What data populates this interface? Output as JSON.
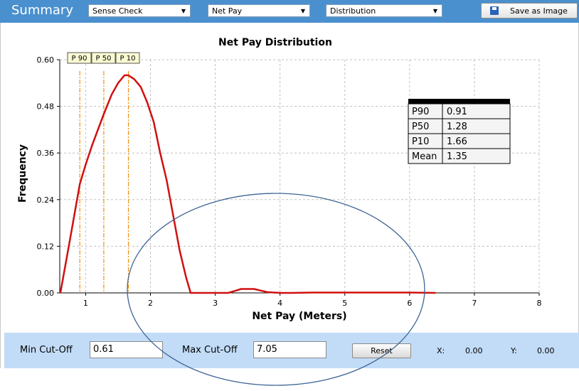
{
  "header": {
    "title": "Summary",
    "dropdown_1": "Sense Check",
    "dropdown_2": "Net Pay",
    "dropdown_3": "Distribution",
    "save_label": "Save as Image"
  },
  "colors": {
    "curve": "#d01010",
    "percentile_line": "#f09010",
    "grid": "#c0c0c0",
    "header_bg": "#4a90cf",
    "bottom_bg": "#c2dcf7",
    "ellipse": "#3e6494"
  },
  "chart_data": {
    "type": "line",
    "title": "Net Pay Distribution",
    "xlabel": "Net Pay (Meters)",
    "ylabel": "Frequency",
    "xlim": [
      0.6,
      8
    ],
    "ylim": [
      0,
      0.6
    ],
    "xticks": [
      "1",
      "2",
      "3",
      "4",
      "5",
      "6",
      "7",
      "8"
    ],
    "yticks": [
      "0.00",
      "0.12",
      "0.24",
      "0.36",
      "0.48",
      "0.60"
    ],
    "grid": true,
    "series": [
      {
        "x": [
          0.61,
          0.75,
          0.91,
          1.0,
          1.1,
          1.28,
          1.4,
          1.5,
          1.6,
          1.66,
          1.75,
          1.85,
          1.95,
          2.05,
          2.15,
          2.25,
          2.35,
          2.45,
          2.55,
          2.62,
          3.2,
          3.3,
          3.4,
          3.5,
          3.6,
          3.7,
          3.8,
          4.0,
          4.2,
          4.5,
          5.0,
          5.5,
          6.0,
          6.4
        ],
        "values": [
          0.0,
          0.13,
          0.28,
          0.33,
          0.38,
          0.46,
          0.51,
          0.54,
          0.56,
          0.56,
          0.55,
          0.53,
          0.49,
          0.44,
          0.36,
          0.29,
          0.2,
          0.11,
          0.04,
          0.0,
          0.0,
          0.005,
          0.01,
          0.01,
          0.01,
          0.006,
          0.002,
          0.0,
          0.0,
          0.001,
          0.001,
          0.001,
          0.001,
          0.0
        ]
      }
    ],
    "percentiles": [
      {
        "label": "P 90",
        "x": 0.91
      },
      {
        "label": "P 50",
        "x": 1.28
      },
      {
        "label": "P 10",
        "x": 1.66
      }
    ],
    "stats_table": [
      {
        "label": "P90",
        "value": "0.91"
      },
      {
        "label": "P50",
        "value": "1.28"
      },
      {
        "label": "P10",
        "value": "1.66"
      },
      {
        "label": "Mean",
        "value": "1.35"
      }
    ]
  },
  "bottom": {
    "min_label": "Min Cut-Off",
    "min_value": "0.61",
    "max_label": "Max Cut-Off",
    "max_value": "7.05",
    "reset_label": "Reset",
    "x_label": "X:",
    "x_value": "0.00",
    "y_label": "Y:",
    "y_value": "0.00"
  }
}
